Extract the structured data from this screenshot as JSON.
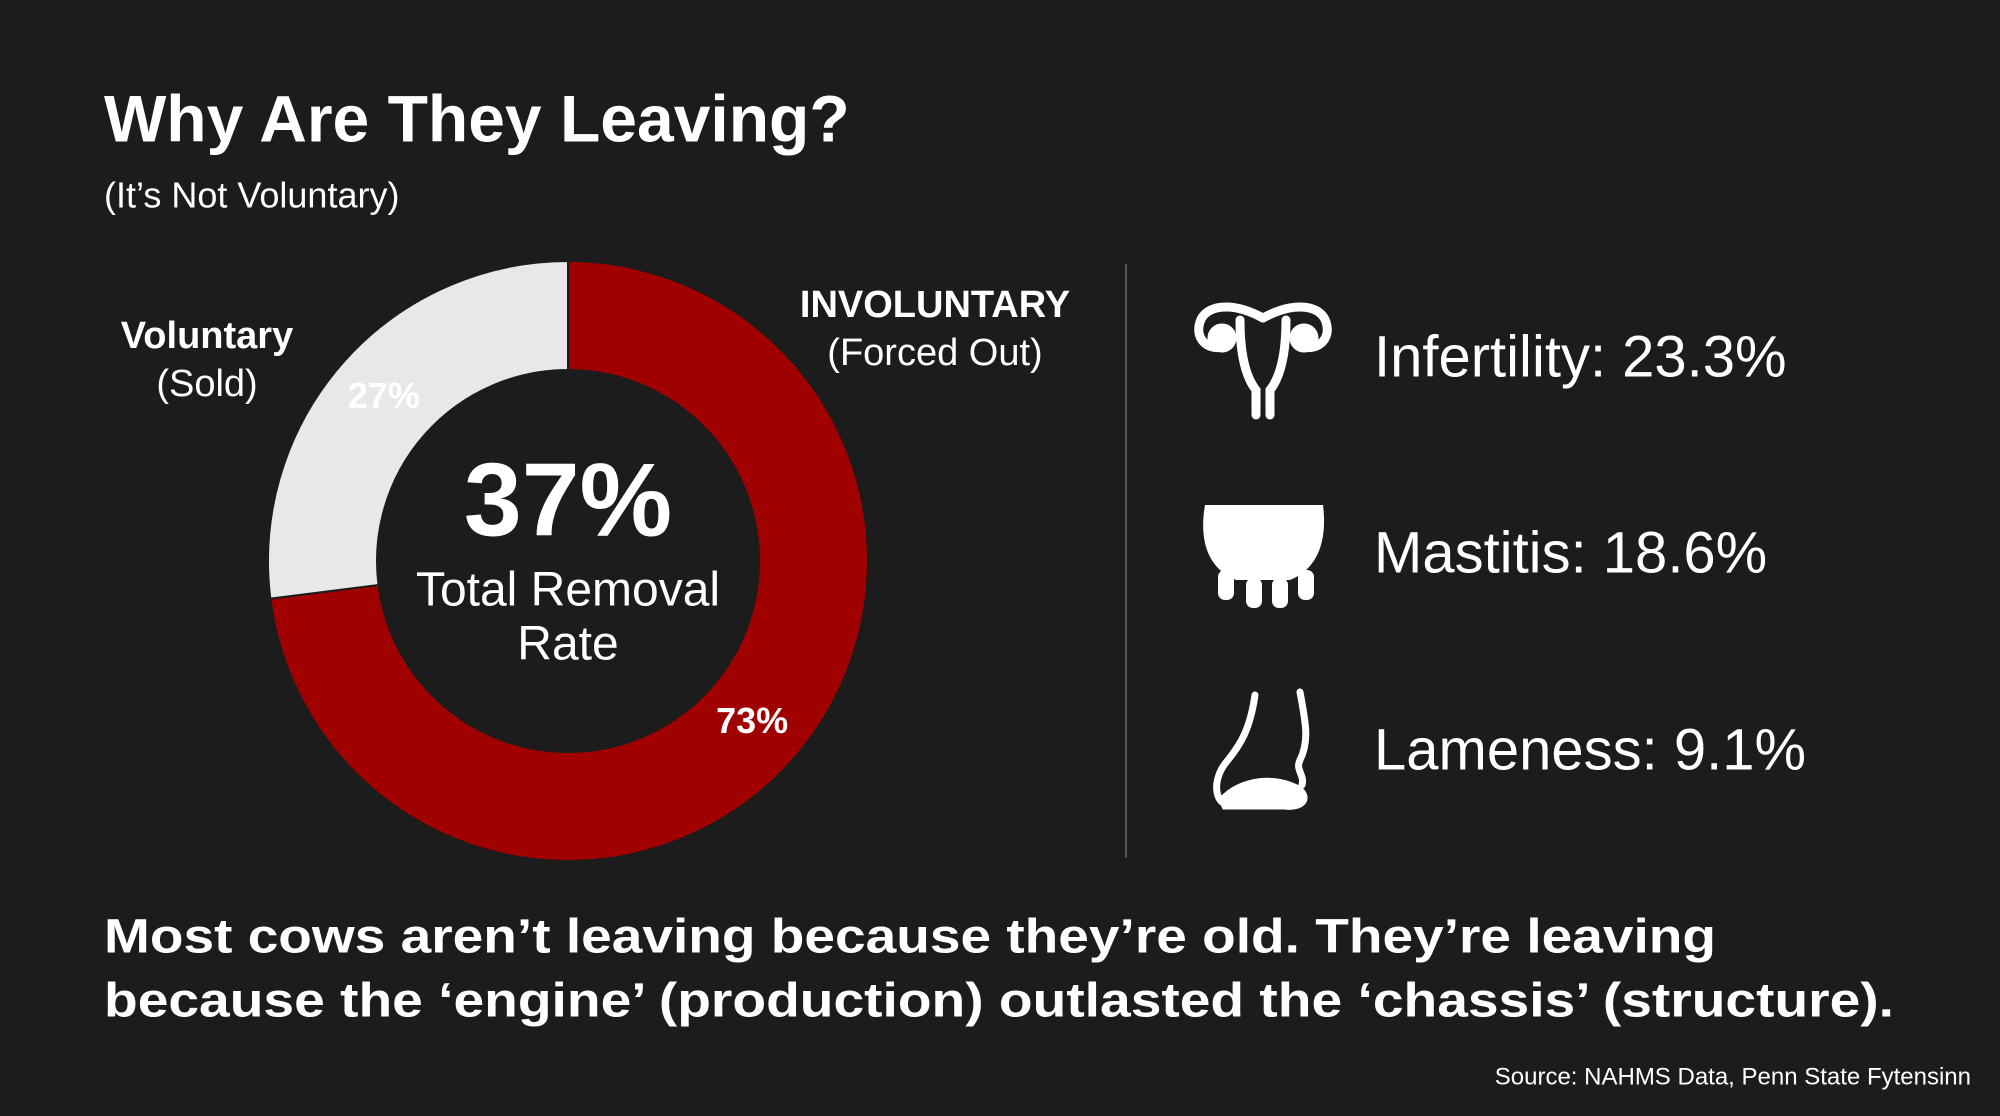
{
  "chart_data": {
    "type": "pie",
    "title": "Why Are They Leaving?",
    "subtitle": "(It’s Not Voluntary)",
    "categories": [
      "Voluntary",
      "INVOLUNTARY"
    ],
    "category_notes": [
      "(Sold)",
      "(Forced Out)"
    ],
    "values": [
      27,
      73
    ],
    "value_labels": [
      "27%",
      "73%"
    ],
    "colors": [
      "#e8e8e8",
      "#a00000"
    ],
    "donut": true,
    "center_value": 37,
    "center_value_label": "37%",
    "center_label": [
      "Total Removal",
      "Rate"
    ]
  },
  "causes": [
    "Infertility: 23.3%",
    "Mastitis: 18.6%",
    "Lameness: 9.1%"
  ],
  "footer": [
    "Most cows aren’t leaving because they’re old. They’re leaving",
    "because the ‘engine’ (production) outlasted the ‘chassis’ (structure)."
  ],
  "source": "Source: NAHMS Data, Penn State Fytensinn"
}
